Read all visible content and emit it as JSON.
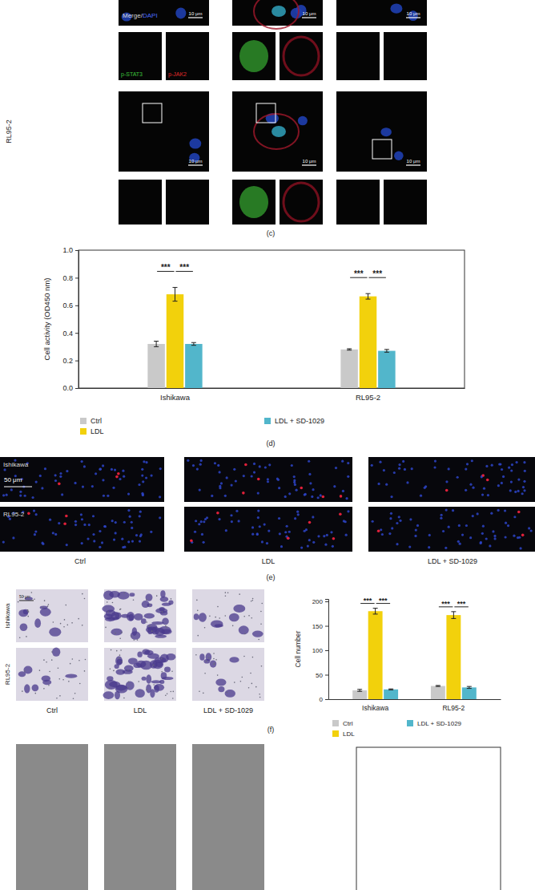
{
  "figure": {
    "panel_c": {
      "label": "(c)",
      "row_label": "RL95-2",
      "merge": "Merge/",
      "dapi": "DAPI",
      "stat3": "p-STAT3",
      "jak2": "p-JAK2",
      "scale_bar": "10 μm"
    },
    "panel_d": {
      "label": "(d)"
    },
    "panel_e": {
      "label": "(e)",
      "row_labels": [
        "Ishikawa",
        "RL95-2"
      ],
      "column_labels": [
        "Ctrl",
        "LDL",
        "LDL + SD-1029"
      ],
      "scale_bar": "50 μm"
    },
    "panel_f": {
      "label": "(f)",
      "row_labels": [
        "Ishikawa",
        "RL95-2"
      ],
      "column_labels": [
        "Ctrl",
        "LDL",
        "LDL + SD-1029"
      ],
      "scale_bar": "50 μm"
    }
  },
  "chart_data": [
    {
      "type": "bar",
      "ylabel": "Cell activity (OD450 nm)",
      "categories": [
        "Ishikawa",
        "RL95-2"
      ],
      "series": [
        {
          "name": "Ctrl",
          "color": "#c9c9c9",
          "values": [
            0.32,
            0.28
          ],
          "errors": [
            0.02,
            0.005
          ]
        },
        {
          "name": "LDL",
          "color": "#f2d10c",
          "values": [
            0.68,
            0.665
          ],
          "errors": [
            0.05,
            0.02
          ]
        },
        {
          "name": "LDL + SD-1029",
          "color": "#52b6cb",
          "values": [
            0.32,
            0.27
          ],
          "errors": [
            0.01,
            0.01
          ]
        }
      ],
      "ylim": [
        0,
        1.0
      ],
      "yticks": [
        {
          "value": 0,
          "label": "0.0"
        },
        0.2,
        0.4,
        0.6,
        0.8,
        {
          "value": 1.0,
          "label": "1.0"
        }
      ],
      "legend": "bottom",
      "annotations": [
        {
          "text": "***",
          "category": "Ishikawa",
          "between": [
            "Ctrl",
            "LDL"
          ]
        },
        {
          "text": "***",
          "category": "Ishikawa",
          "between": [
            "LDL",
            "LDL + SD-1029"
          ]
        },
        {
          "text": "***",
          "category": "RL95-2",
          "between": [
            "Ctrl",
            "LDL"
          ]
        },
        {
          "text": "***",
          "category": "RL95-2",
          "between": [
            "LDL",
            "LDL + SD-1029"
          ]
        }
      ]
    },
    {
      "type": "bar",
      "ylabel": "Cell number",
      "categories": [
        "Ishikawa",
        "RL95-2"
      ],
      "series": [
        {
          "name": "Ctrl",
          "color": "#c9c9c9",
          "values": [
            18,
            27
          ],
          "errors": [
            2,
            1
          ]
        },
        {
          "name": "LDL",
          "color": "#f2d10c",
          "values": [
            180,
            172
          ],
          "errors": [
            6,
            7
          ]
        },
        {
          "name": "LDL + SD-1029",
          "color": "#52b6cb",
          "values": [
            20,
            24
          ],
          "errors": [
            1,
            2
          ]
        }
      ],
      "ylim": [
        0,
        205
      ],
      "yticks": [
        0,
        50,
        100,
        150,
        200
      ],
      "legend": "bottom",
      "annotations": [
        {
          "text": "***",
          "category": "Ishikawa",
          "between": [
            "Ctrl",
            "LDL"
          ]
        },
        {
          "text": "***",
          "category": "Ishikawa",
          "between": [
            "LDL",
            "LDL + SD-1029"
          ]
        },
        {
          "text": "***",
          "category": "RL95-2",
          "between": [
            "Ctrl",
            "LDL"
          ]
        },
        {
          "text": "***",
          "category": "RL95-2",
          "between": [
            "LDL",
            "LDL + SD-1029"
          ]
        }
      ]
    }
  ]
}
